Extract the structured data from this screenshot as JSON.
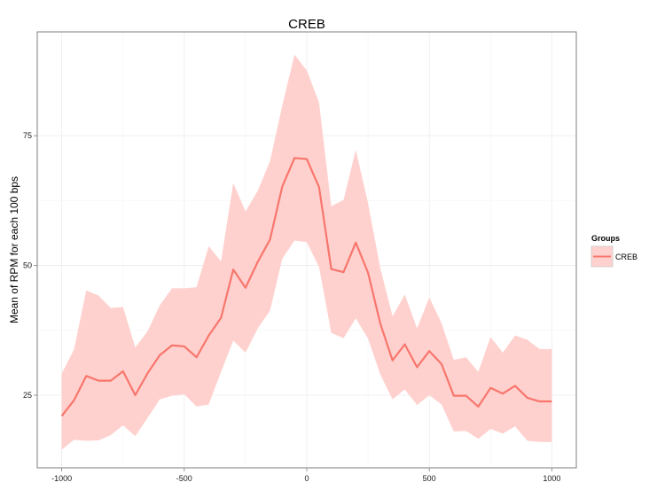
{
  "chart_data": {
    "type": "line",
    "title": "CREB",
    "xlabel": "",
    "ylabel": "Mean of RPM for each 100 bps",
    "xlim": [
      -1100,
      1100
    ],
    "ylim": [
      11,
      95
    ],
    "x_ticks": [
      -1000,
      -500,
      0,
      500,
      1000
    ],
    "x_tick_labels": [
      "-1000",
      "-500",
      "0",
      "500",
      "1000"
    ],
    "y_ticks": [
      25,
      50,
      75
    ],
    "y_tick_labels": [
      "25",
      "50",
      "75"
    ],
    "grid": true,
    "legend": {
      "title": "Groups",
      "position": "right"
    },
    "series": [
      {
        "name": "CREB",
        "color": "#F8766D",
        "ribbon_color": "#FFD1CE",
        "x": [
          -1000,
          -950,
          -900,
          -850,
          -800,
          -750,
          -700,
          -650,
          -600,
          -550,
          -500,
          -450,
          -400,
          -350,
          -300,
          -250,
          -200,
          -150,
          -100,
          -50,
          0,
          50,
          100,
          150,
          200,
          250,
          300,
          350,
          400,
          450,
          500,
          550,
          600,
          650,
          700,
          750,
          800,
          850,
          900,
          950,
          1000
        ],
        "y": [
          21.0,
          24.0,
          28.7,
          27.8,
          27.8,
          29.6,
          25.0,
          29.2,
          32.7,
          34.6,
          34.4,
          32.3,
          36.5,
          39.9,
          49.2,
          45.7,
          50.7,
          55.0,
          65.2,
          70.7,
          70.5,
          65.1,
          49.3,
          48.7,
          54.4,
          48.6,
          38.8,
          31.7,
          34.8,
          30.4,
          33.5,
          31.0,
          24.9,
          24.9,
          22.8,
          26.4,
          25.3,
          26.8,
          24.5,
          23.8,
          23.8
        ],
        "lower": [
          14.5,
          16.4,
          16.2,
          16.3,
          17.3,
          19.2,
          17.1,
          20.6,
          24.2,
          24.9,
          25.2,
          22.8,
          23.2,
          29.5,
          35.5,
          33.2,
          37.9,
          41.3,
          51.3,
          54.8,
          54.5,
          49.7,
          37.0,
          36.0,
          39.8,
          35.9,
          29.0,
          24.2,
          26.1,
          23.1,
          25.0,
          23.2,
          18.0,
          18.1,
          16.6,
          18.5,
          17.6,
          19.0,
          16.2,
          16.0,
          16.0
        ],
        "upper": [
          29.2,
          33.8,
          45.2,
          44.2,
          41.8,
          42.0,
          34.2,
          37.3,
          42.3,
          45.6,
          45.6,
          45.8,
          53.7,
          50.8,
          65.9,
          60.4,
          64.4,
          70.1,
          80.8,
          90.6,
          87.6,
          81.4,
          61.4,
          62.6,
          72.3,
          62.0,
          49.5,
          40.2,
          44.4,
          37.9,
          43.8,
          38.9,
          31.8,
          32.3,
          29.5,
          36.2,
          33.2,
          36.5,
          35.7,
          33.9,
          33.9
        ]
      }
    ]
  }
}
